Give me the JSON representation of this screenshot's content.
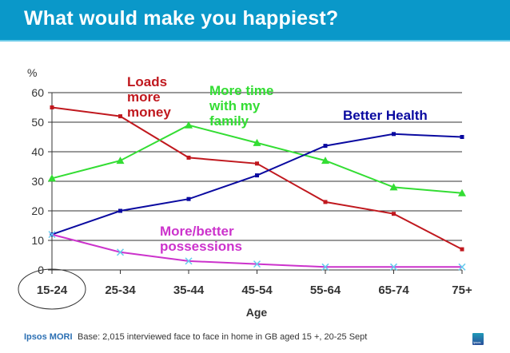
{
  "header": {
    "title": "What would make you happiest?"
  },
  "footer": {
    "brand": "Ipsos MORI",
    "base_note": "Base: 2,015 interviewed face to face in home in GB  aged 15 +, 20-25 Sept",
    "logo_label": "ipsos"
  },
  "chart_data": {
    "type": "line",
    "title": "What would make you happiest?",
    "xlabel": "Age",
    "ylabel": "%",
    "ylim": [
      0,
      60
    ],
    "yticks": [
      0,
      10,
      20,
      30,
      40,
      50,
      60
    ],
    "grid": true,
    "categories": [
      "15-24",
      "25-34",
      "35-44",
      "45-54",
      "55-64",
      "65-74",
      "75+"
    ],
    "highlighted_category": "15-24",
    "series": [
      {
        "name": "Loads more money",
        "label_lines": [
          "Loads",
          "more",
          "money"
        ],
        "color": "#c0181e",
        "marker": "square",
        "values": [
          55,
          52,
          38,
          36,
          23,
          19,
          7
        ]
      },
      {
        "name": "More time with my family",
        "label_lines": [
          "More time",
          "with my",
          "family"
        ],
        "color": "#33dd33",
        "marker": "triangle",
        "values": [
          31,
          37,
          49,
          43,
          37,
          28,
          26
        ]
      },
      {
        "name": "Better Health",
        "label_lines": [
          "Better Health"
        ],
        "color": "#0a0aa0",
        "marker": "square",
        "values": [
          12,
          20,
          24,
          32,
          42,
          46,
          45
        ]
      },
      {
        "name": "More/better possessions",
        "label_lines": [
          "More/better",
          "possessions"
        ],
        "color": "#cc33cc",
        "marker": "x",
        "marker_color": "#66ccee",
        "values": [
          12,
          6,
          3,
          2,
          1,
          1,
          1
        ]
      }
    ]
  }
}
